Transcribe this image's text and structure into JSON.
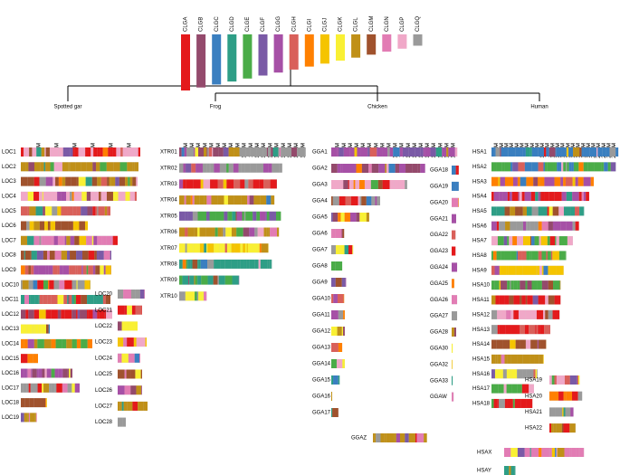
{
  "legend": {
    "items": [
      {
        "name": "CLGA",
        "color": "#e41a1c"
      },
      {
        "name": "CLGB",
        "color": "#944a6c"
      },
      {
        "name": "CLGC",
        "color": "#3a7fc0"
      },
      {
        "name": "CLGD",
        "color": "#2e9e86"
      },
      {
        "name": "CLGE",
        "color": "#4aac48"
      },
      {
        "name": "CLGF",
        "color": "#7a5aa6"
      },
      {
        "name": "CLGG",
        "color": "#a650a6"
      },
      {
        "name": "CLGH",
        "color": "#d9605a"
      },
      {
        "name": "CLGI",
        "color": "#ff8000"
      },
      {
        "name": "CLGJ",
        "color": "#f5c400"
      },
      {
        "name": "CLGK",
        "color": "#f9f034"
      },
      {
        "name": "CLGL",
        "color": "#c09018"
      },
      {
        "name": "CLGM",
        "color": "#a0522d"
      },
      {
        "name": "CLGN",
        "color": "#e27cb4"
      },
      {
        "name": "CLGP",
        "color": "#f0a8c8"
      },
      {
        "name": "CLGQ",
        "color": "#9a9a9a"
      }
    ]
  },
  "panels": [
    {
      "name": "Spotted gar",
      "ticks": [
        {
          "value": 10,
          "label": "10 M"
        },
        {
          "value": 20,
          "label": "20 M"
        },
        {
          "value": 30,
          "label": "30 M"
        },
        {
          "value": 40,
          "label": "40 M"
        },
        {
          "value": 50,
          "label": "50 M"
        },
        {
          "value": 60,
          "label": "60 M"
        }
      ],
      "chromosomes": [
        {
          "name": "LOC1",
          "length": 66
        },
        {
          "name": "LOC2",
          "length": 65
        },
        {
          "name": "LOC3",
          "length": 64.5
        },
        {
          "name": "LOC4",
          "length": 64
        },
        {
          "name": "LOC5",
          "length": 49.5
        },
        {
          "name": "LOC6",
          "length": 37
        },
        {
          "name": "LOC7",
          "length": 53.5
        },
        {
          "name": "LOC8",
          "length": 50
        },
        {
          "name": "LOC9",
          "length": 50
        },
        {
          "name": "LOC10",
          "length": 38.5
        },
        {
          "name": "LOC11",
          "length": 49.5
        },
        {
          "name": "LOC12",
          "length": 50.5
        },
        {
          "name": "LOC13",
          "length": 16
        },
        {
          "name": "LOC14",
          "length": 39.5
        },
        {
          "name": "LOC15",
          "length": 9.5
        },
        {
          "name": "LOC16",
          "length": 28.5
        },
        {
          "name": "LOC17",
          "length": 32.5
        },
        {
          "name": "LOC18",
          "length": 14.5
        },
        {
          "name": "LOC19",
          "length": 9
        },
        {
          "name": "LOC20",
          "length": 15
        },
        {
          "name": "LOC21",
          "length": 13.5
        },
        {
          "name": "LOC22",
          "length": 11
        },
        {
          "name": "LOC23",
          "length": 16
        },
        {
          "name": "LOC24",
          "length": 12.5
        },
        {
          "name": "LOC25",
          "length": 13.5
        },
        {
          "name": "LOC26",
          "length": 13.5
        },
        {
          "name": "LOC27",
          "length": 16.5
        },
        {
          "name": "LOC28",
          "length": 4.5
        }
      ]
    },
    {
      "name": "Frog",
      "ticks": [
        {
          "value": 10,
          "label": "10 M"
        },
        {
          "value": 20,
          "label": "20 M"
        },
        {
          "value": 30,
          "label": "30 M"
        },
        {
          "value": 40,
          "label": "40 M"
        },
        {
          "value": 50,
          "label": "50 M"
        },
        {
          "value": 60,
          "label": "60 M"
        },
        {
          "value": 70,
          "label": "70 M"
        },
        {
          "value": 80,
          "label": "80 M"
        },
        {
          "value": 90,
          "label": "90 M"
        },
        {
          "value": 100,
          "label": "100 M"
        },
        {
          "value": 110,
          "label": "110 M"
        },
        {
          "value": 120,
          "label": "120 M"
        },
        {
          "value": 130,
          "label": "130 M"
        },
        {
          "value": 140,
          "label": "140 M"
        },
        {
          "value": 150,
          "label": "150 M"
        },
        {
          "value": 160,
          "label": "160 M"
        },
        {
          "value": 170,
          "label": "170 M"
        },
        {
          "value": 180,
          "label": "180 M"
        },
        {
          "value": 190,
          "label": "190 M"
        }
      ],
      "chromosomes": [
        {
          "name": "XTR01",
          "length": 194
        },
        {
          "name": "XTR02",
          "length": 158
        },
        {
          "name": "XTR03",
          "length": 150
        },
        {
          "name": "XTR04",
          "length": 146
        },
        {
          "name": "XTR05",
          "length": 156
        },
        {
          "name": "XTR06",
          "length": 153
        },
        {
          "name": "XTR07",
          "length": 137
        },
        {
          "name": "XTR08",
          "length": 142
        },
        {
          "name": "XTR09",
          "length": 92
        },
        {
          "name": "XTR10",
          "length": 42
        }
      ]
    },
    {
      "name": "Chicken",
      "ticks": [
        {
          "value": 10,
          "label": "10 M"
        },
        {
          "value": 20,
          "label": "20 M"
        },
        {
          "value": 30,
          "label": "30 M"
        },
        {
          "value": 40,
          "label": "40 M"
        },
        {
          "value": 50,
          "label": "50 M"
        },
        {
          "value": 60,
          "label": "60 M"
        },
        {
          "value": 70,
          "label": "70 M"
        },
        {
          "value": 80,
          "label": "80 M"
        },
        {
          "value": 90,
          "label": "90 M"
        },
        {
          "value": 100,
          "label": "100 M"
        },
        {
          "value": 110,
          "label": "110 M"
        },
        {
          "value": 120,
          "label": "120 M"
        },
        {
          "value": 130,
          "label": "130 M"
        },
        {
          "value": 140,
          "label": "140 M"
        },
        {
          "value": 150,
          "label": "150 M"
        },
        {
          "value": 160,
          "label": "160 M"
        },
        {
          "value": 170,
          "label": "170 M"
        },
        {
          "value": 180,
          "label": "180 M"
        },
        {
          "value": 190,
          "label": "190 M"
        }
      ],
      "chromosomes": [
        {
          "name": "GGA1",
          "length": 196
        },
        {
          "name": "GGA2",
          "length": 146
        },
        {
          "name": "GGA3",
          "length": 118
        },
        {
          "name": "GGA4",
          "length": 76
        },
        {
          "name": "GGA5",
          "length": 59
        },
        {
          "name": "GGA6",
          "length": 20
        },
        {
          "name": "GGA7",
          "length": 34
        },
        {
          "name": "GGA8",
          "length": 17
        },
        {
          "name": "GGA9",
          "length": 23
        },
        {
          "name": "GGA10",
          "length": 20
        },
        {
          "name": "GGA11",
          "length": 21
        },
        {
          "name": "GGA12",
          "length": 21
        },
        {
          "name": "GGA13",
          "length": 17
        },
        {
          "name": "GGA14",
          "length": 21
        },
        {
          "name": "GGA15",
          "length": 13
        },
        {
          "name": "GGA16",
          "length": 1.4
        },
        {
          "name": "GGA17",
          "length": 11
        },
        {
          "name": "GGA18",
          "length": 11
        },
        {
          "name": "GGA19",
          "length": 11
        },
        {
          "name": "GGA20",
          "length": 11
        },
        {
          "name": "GGA21",
          "length": 7
        },
        {
          "name": "GGA22",
          "length": 6
        },
        {
          "name": "GGA23",
          "length": 6
        },
        {
          "name": "GGA24",
          "length": 8.5
        },
        {
          "name": "GGA25",
          "length": 4
        },
        {
          "name": "GGA26",
          "length": 8.5
        },
        {
          "name": "GGA27",
          "length": 8.5
        },
        {
          "name": "GGA28",
          "length": 7
        },
        {
          "name": "GGA30",
          "length": 1.5
        },
        {
          "name": "GGA32",
          "length": 1
        },
        {
          "name": "GGA33",
          "length": 1.5
        },
        {
          "name": "GGAW",
          "length": 3
        },
        {
          "name": "GGAZ",
          "length": 84
        }
      ]
    },
    {
      "name": "Human",
      "ticks": [
        {
          "value": 10,
          "label": "10 M"
        },
        {
          "value": 20,
          "label": "20 M"
        },
        {
          "value": 30,
          "label": "30 M"
        },
        {
          "value": 40,
          "label": "40 M"
        },
        {
          "value": 50,
          "label": "50 M"
        },
        {
          "value": 60,
          "label": "60 M"
        },
        {
          "value": 70,
          "label": "70 M"
        },
        {
          "value": 80,
          "label": "80 M"
        },
        {
          "value": 90,
          "label": "90 M"
        },
        {
          "value": 100,
          "label": "100 M"
        },
        {
          "value": 110,
          "label": "110 M"
        },
        {
          "value": 120,
          "label": "120 M"
        },
        {
          "value": 130,
          "label": "130 M"
        },
        {
          "value": 140,
          "label": "140 M"
        },
        {
          "value": 150,
          "label": "150 M"
        },
        {
          "value": 160,
          "label": "160 M"
        },
        {
          "value": 170,
          "label": "170 M"
        },
        {
          "value": 180,
          "label": "180 M"
        },
        {
          "value": 190,
          "label": "190 M"
        },
        {
          "value": 200,
          "label": "200 M"
        },
        {
          "value": 210,
          "label": "210 M"
        },
        {
          "value": 220,
          "label": "220 M"
        },
        {
          "value": 230,
          "label": "230 M"
        },
        {
          "value": 240,
          "label": "240 M"
        }
      ],
      "chromosomes": [
        {
          "name": "HSA1",
          "length": 248
        },
        {
          "name": "HSA2",
          "length": 243
        },
        {
          "name": "HSA3",
          "length": 200
        },
        {
          "name": "HSA4",
          "length": 191
        },
        {
          "name": "HSA5",
          "length": 181
        },
        {
          "name": "HSA6",
          "length": 171
        },
        {
          "name": "HSA7",
          "length": 159
        },
        {
          "name": "HSA8",
          "length": 146
        },
        {
          "name": "HSA9",
          "length": 141
        },
        {
          "name": "HSA10",
          "length": 135
        },
        {
          "name": "HSA11",
          "length": 135
        },
        {
          "name": "HSA12",
          "length": 133
        },
        {
          "name": "HSA13",
          "length": 115
        },
        {
          "name": "HSA14",
          "length": 107
        },
        {
          "name": "HSA15",
          "length": 102
        },
        {
          "name": "HSA16",
          "length": 90
        },
        {
          "name": "HSA17",
          "length": 83
        },
        {
          "name": "HSA18",
          "length": 80
        },
        {
          "name": "HSA19",
          "length": 59
        },
        {
          "name": "HSA20",
          "length": 64
        },
        {
          "name": "HSA21",
          "length": 47
        },
        {
          "name": "HSA22",
          "length": 51
        },
        {
          "name": "HSAX",
          "length": 156
        },
        {
          "name": "HSAY",
          "length": 22
        }
      ]
    }
  ]
}
